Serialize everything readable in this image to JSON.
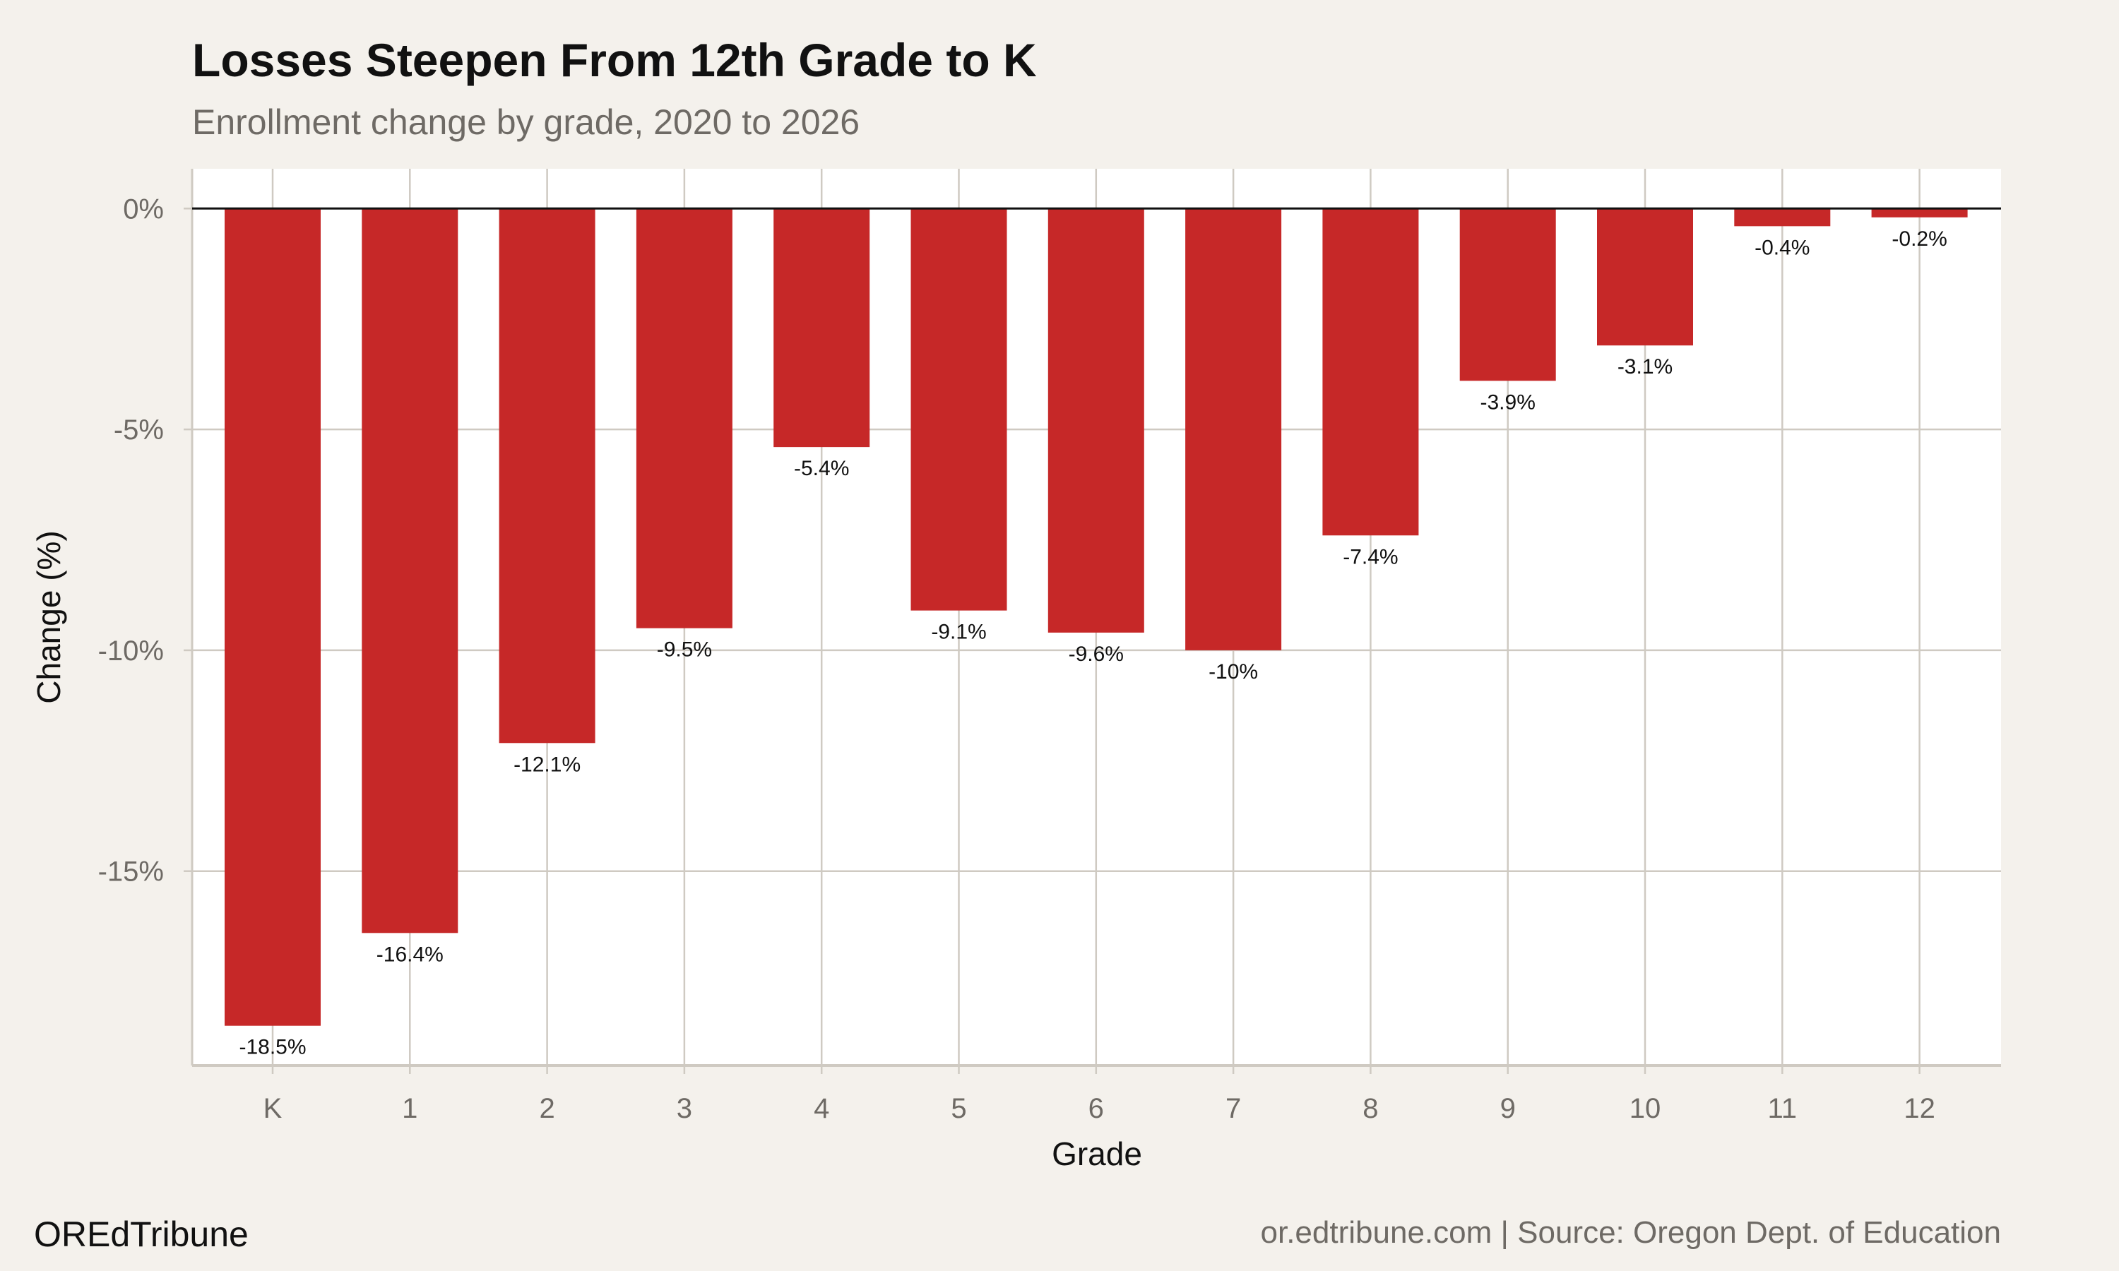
{
  "chart_data": {
    "type": "bar",
    "title": "Losses Steepen From 12th Grade to K",
    "subtitle": "Enrollment change by grade, 2020 to 2026",
    "xlabel": "Grade",
    "ylabel": "Change (%)",
    "categories": [
      "K",
      "1",
      "2",
      "3",
      "4",
      "5",
      "6",
      "7",
      "8",
      "9",
      "10",
      "11",
      "12"
    ],
    "values": [
      -18.5,
      -16.4,
      -12.1,
      -9.5,
      -5.4,
      -9.1,
      -9.6,
      -10,
      -7.4,
      -3.9,
      -3.1,
      -0.4,
      -0.2
    ],
    "data_labels": [
      "-18.5%",
      "-16.4%",
      "-12.1%",
      "-9.5%",
      "-5.4%",
      "-9.1%",
      "-9.6%",
      "-10%",
      "-7.4%",
      "-3.9%",
      "-3.1%",
      "-0.4%",
      "-0.2%"
    ],
    "ylim": [
      -19.4,
      0.9
    ],
    "yticks": [
      0,
      -5,
      -10,
      -15
    ],
    "ytick_labels": [
      "0%",
      "-5%",
      "-10%",
      "-15%"
    ],
    "grid": true,
    "bar_color": "#c62828",
    "background": "#f4f1ec"
  },
  "footer": {
    "brand": "OREdTribune",
    "source": "or.edtribune.com | Source: Oregon Dept. of Education"
  }
}
